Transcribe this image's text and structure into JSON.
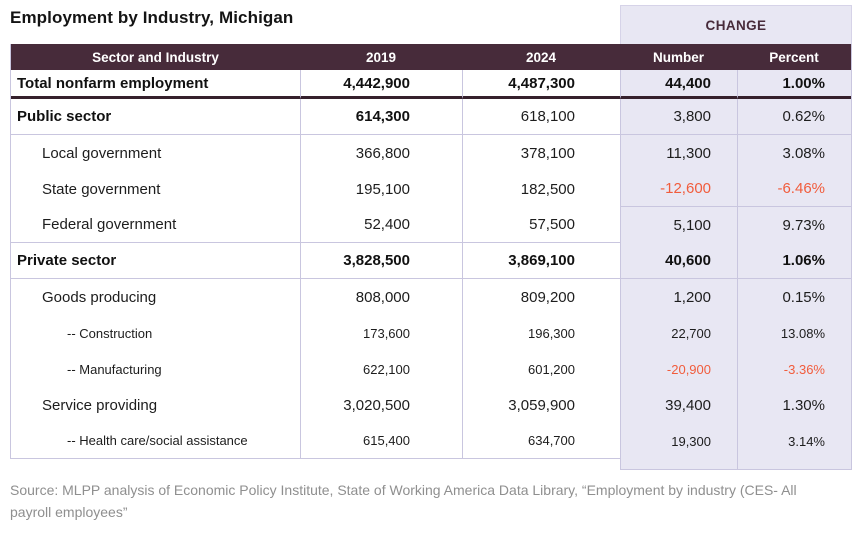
{
  "title": "Employment by Industry, Michigan",
  "source": "Source: MLPP analysis of Economic Policy Institute, State of Working America Data Library, “Employment by industry (CES- All payroll employees”",
  "colors": {
    "header_bg": "#472b3a",
    "header_text": "#ffffff",
    "change_band_bg": "#e8e7f3",
    "negative_value": "#f15c3c",
    "grid_line": "#c9c6df",
    "thick_rule": "#35202c",
    "source_text": "#8f8f8f"
  },
  "chart_data": {
    "type": "table",
    "title": "Employment by Industry, Michigan",
    "columns": [
      "Sector and Industry",
      "2019",
      "2024",
      "Number",
      "Percent"
    ],
    "column_groups": [
      {
        "label": "CHANGE",
        "columns": [
          "Number",
          "Percent"
        ]
      }
    ],
    "rows": [
      {
        "label": "Total nonfarm employment",
        "indent": 0,
        "v2019": "4,442,900",
        "v2024": "4,487,300",
        "change_number": "44,400",
        "change_percent": "1.00%",
        "bold": "all",
        "emphasis": "total"
      },
      {
        "label": "Public sector",
        "indent": 0,
        "v2019": "614,300",
        "v2024": "618,100",
        "change_number": "3,800",
        "change_percent": "0.62%",
        "bold": "label-2019",
        "rule_below": "all"
      },
      {
        "label": "Local government",
        "indent": 1,
        "v2019": "366,800",
        "v2024": "378,100",
        "change_number": "11,300",
        "change_percent": "3.08%",
        "bold": "none"
      },
      {
        "label": "State government",
        "indent": 1,
        "v2019": "195,100",
        "v2024": "182,500",
        "change_number": "-12,600",
        "change_percent": "-6.46%",
        "bold": "none",
        "rule_below": "chg"
      },
      {
        "label": "Federal government",
        "indent": 1,
        "v2019": "52,400",
        "v2024": "57,500",
        "change_number": "5,100",
        "change_percent": "9.73%",
        "bold": "none",
        "rule_below": "main"
      },
      {
        "label": "Private sector",
        "indent": 0,
        "v2019": "3,828,500",
        "v2024": "3,869,100",
        "change_number": "40,600",
        "change_percent": "1.06%",
        "bold": "all",
        "rule_below": "all"
      },
      {
        "label": "Goods producing",
        "indent": 1,
        "v2019": "808,000",
        "v2024": "809,200",
        "change_number": "1,200",
        "change_percent": "0.15%",
        "bold": "none"
      },
      {
        "label": "-- Construction",
        "indent": 2,
        "v2019": "173,600",
        "v2024": "196,300",
        "change_number": "22,700",
        "change_percent": "13.08%",
        "bold": "none"
      },
      {
        "label": "-- Manufacturing",
        "indent": 2,
        "v2019": "622,100",
        "v2024": "601,200",
        "change_number": "-20,900",
        "change_percent": "-3.36%",
        "bold": "none"
      },
      {
        "label": "Service providing",
        "indent": 1,
        "v2019": "3,020,500",
        "v2024": "3,059,900",
        "change_number": "39,400",
        "change_percent": "1.30%",
        "bold": "none"
      },
      {
        "label": "-- Health care/social assistance",
        "indent": 2,
        "v2019": "615,400",
        "v2024": "634,700",
        "change_number": "19,300",
        "change_percent": "3.14%",
        "bold": "none",
        "rule_below": "main"
      }
    ]
  }
}
